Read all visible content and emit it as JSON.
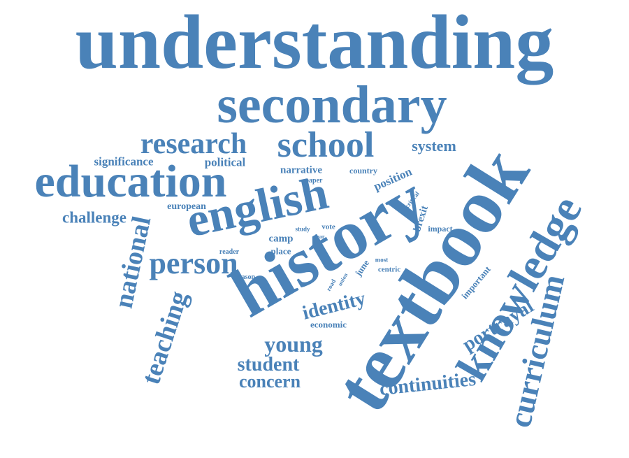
{
  "palette": {
    "word_color": "#4a82b8",
    "background": "#ffffff"
  },
  "words": [
    "understanding",
    "secondary",
    "textbook",
    "history",
    "english",
    "school",
    "research",
    "education",
    "knowledge",
    "curriculum",
    "person",
    "national",
    "teaching",
    "identity",
    "young",
    "student",
    "concern",
    "continuities",
    "portrayal",
    "system",
    "significance",
    "political",
    "narrative",
    "country",
    "paper",
    "position",
    "challenge",
    "european",
    "critical",
    "brexit",
    "study",
    "vote",
    "clear",
    "impact",
    "camp",
    "place",
    "reader",
    "road",
    "union",
    "june",
    "most",
    "centric",
    "reason",
    "important",
    "economic"
  ]
}
